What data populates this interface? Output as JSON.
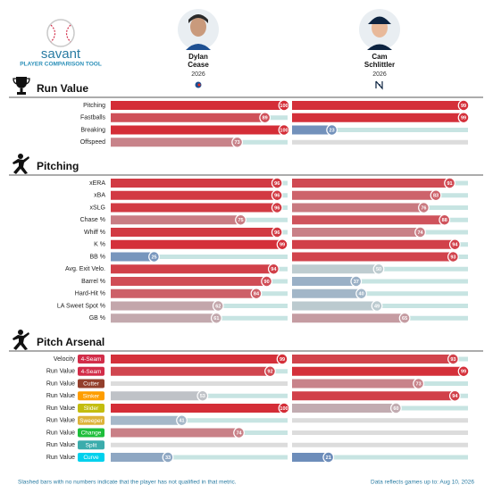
{
  "header": {
    "logo": "savant",
    "subtitle": "PLAYER COMPARISON TOOL"
  },
  "players": [
    {
      "first": "Dylan",
      "last": "Cease",
      "year": "2026"
    },
    {
      "first": "Cam",
      "last": "Schlittler",
      "year": "2026"
    }
  ],
  "sections": [
    {
      "title": "Run Value",
      "rows": [
        {
          "label": "Pitching",
          "values": [
            100,
            99
          ]
        },
        {
          "label": "Fastballs",
          "values": [
            89,
            99
          ]
        },
        {
          "label": "Breaking",
          "values": [
            100,
            23
          ]
        },
        {
          "label": "Offspeed",
          "values": [
            73,
            null
          ]
        }
      ]
    },
    {
      "title": "Pitching",
      "rows": [
        {
          "label": "xERA",
          "values": [
            96,
            91
          ]
        },
        {
          "label": "xBA",
          "values": [
            96,
            83
          ]
        },
        {
          "label": "xSLG",
          "values": [
            96,
            76
          ]
        },
        {
          "label": "Chase %",
          "values": [
            75,
            88
          ]
        },
        {
          "label": "Whiff %",
          "values": [
            96,
            74
          ]
        },
        {
          "label": "K %",
          "values": [
            99,
            94
          ]
        },
        {
          "label": "BB %",
          "values": [
            25,
            93
          ]
        },
        {
          "label": "Avg. Exit Velo.",
          "values": [
            94,
            50
          ]
        },
        {
          "label": "Barrel %",
          "values": [
            90,
            37
          ]
        },
        {
          "label": "Hard-Hit %",
          "values": [
            84,
            40
          ]
        },
        {
          "label": "LA Sweet Spot %",
          "values": [
            62,
            49
          ]
        },
        {
          "label": "GB %",
          "values": [
            61,
            65
          ]
        }
      ]
    },
    {
      "title": "Pitch Arsenal",
      "rows": [
        {
          "label": "Velocity",
          "pitch": "4-Seam",
          "pitch_color": "#d22d49",
          "values": [
            99,
            93
          ]
        },
        {
          "label": "Run Value",
          "pitch": "4-Seam",
          "pitch_color": "#d22d49",
          "values": [
            92,
            99
          ]
        },
        {
          "label": "Run Value",
          "pitch": "Cutter",
          "pitch_color": "#933f2c",
          "values": [
            null,
            73
          ]
        },
        {
          "label": "Run Value",
          "pitch": "Sinker",
          "pitch_color": "#fe9d00",
          "values": [
            53,
            94
          ]
        },
        {
          "label": "Run Value",
          "pitch": "Slider",
          "pitch_color": "#c3bd0e",
          "values": [
            100,
            60
          ]
        },
        {
          "label": "Run Value",
          "pitch": "Sweeper",
          "pitch_color": "#ddb33a",
          "values": [
            41,
            null
          ]
        },
        {
          "label": "Run Value",
          "pitch": "Change",
          "pitch_color": "#1dbe3a",
          "values": [
            74,
            null
          ]
        },
        {
          "label": "Run Value",
          "pitch": "Split",
          "pitch_color": "#3bacac",
          "values": [
            null,
            null
          ]
        },
        {
          "label": "Run Value",
          "pitch": "Curve",
          "pitch_color": "#00d1ed",
          "values": [
            33,
            21
          ]
        }
      ]
    }
  ],
  "footer": {
    "note": "Slashed bars with no numbers indicate that the player has not qualified in that metric.",
    "updated": "Data reflects games up to: Aug 10, 2026"
  }
}
